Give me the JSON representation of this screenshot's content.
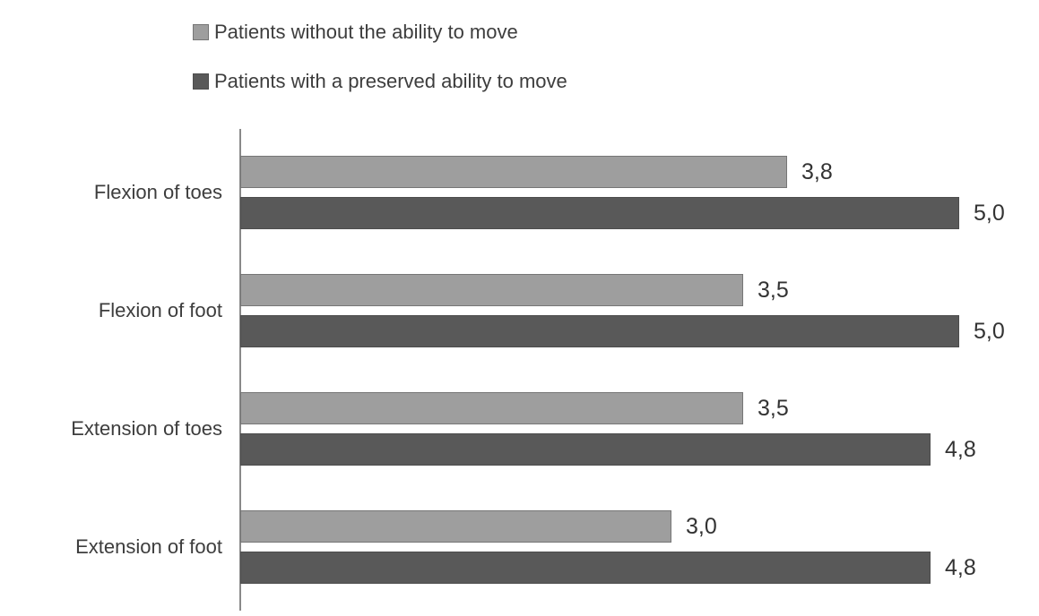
{
  "colors": {
    "series_without_fill": "#9e9e9e",
    "series_without_border": "#767676",
    "series_with_fill": "#595959",
    "series_with_border": "#4d4d4d",
    "axis_line": "#898989",
    "text": "#3d3d3d"
  },
  "legend": {
    "items": [
      {
        "label": "Patients without the ability to move",
        "color": "#9e9e9e",
        "border": "#767676"
      },
      {
        "label": "Patients with a preserved ability to move",
        "color": "#595959",
        "border": "#4d4d4d"
      }
    ]
  },
  "chart_data": {
    "type": "bar",
    "orientation": "horizontal",
    "title": "",
    "xlabel": "",
    "ylabel": "",
    "categories": [
      "Flexion of toes",
      "Flexion of foot",
      "Extension of toes",
      "Extension of foot"
    ],
    "series": [
      {
        "name": "Patients without the ability to move",
        "values": [
          3.8,
          3.5,
          3.5,
          3.0
        ],
        "data_labels": [
          "3,8",
          "3,5",
          "3,5",
          "3,0"
        ],
        "fill": "#9e9e9e",
        "border": "#767676"
      },
      {
        "name": "Patients with a preserved ability to move",
        "values": [
          5.0,
          5.0,
          4.8,
          4.8
        ],
        "data_labels": [
          "5,0",
          "5,0",
          "4,8",
          "4,8"
        ],
        "fill": "#595959",
        "border": "#4d4d4d"
      }
    ],
    "value_axis": {
      "min": 0,
      "max": 5,
      "tick_labels_visible": false
    },
    "gridlines": false,
    "legend_position": "top-left",
    "data_label_format": "comma decimal separator, outside end of bar"
  }
}
